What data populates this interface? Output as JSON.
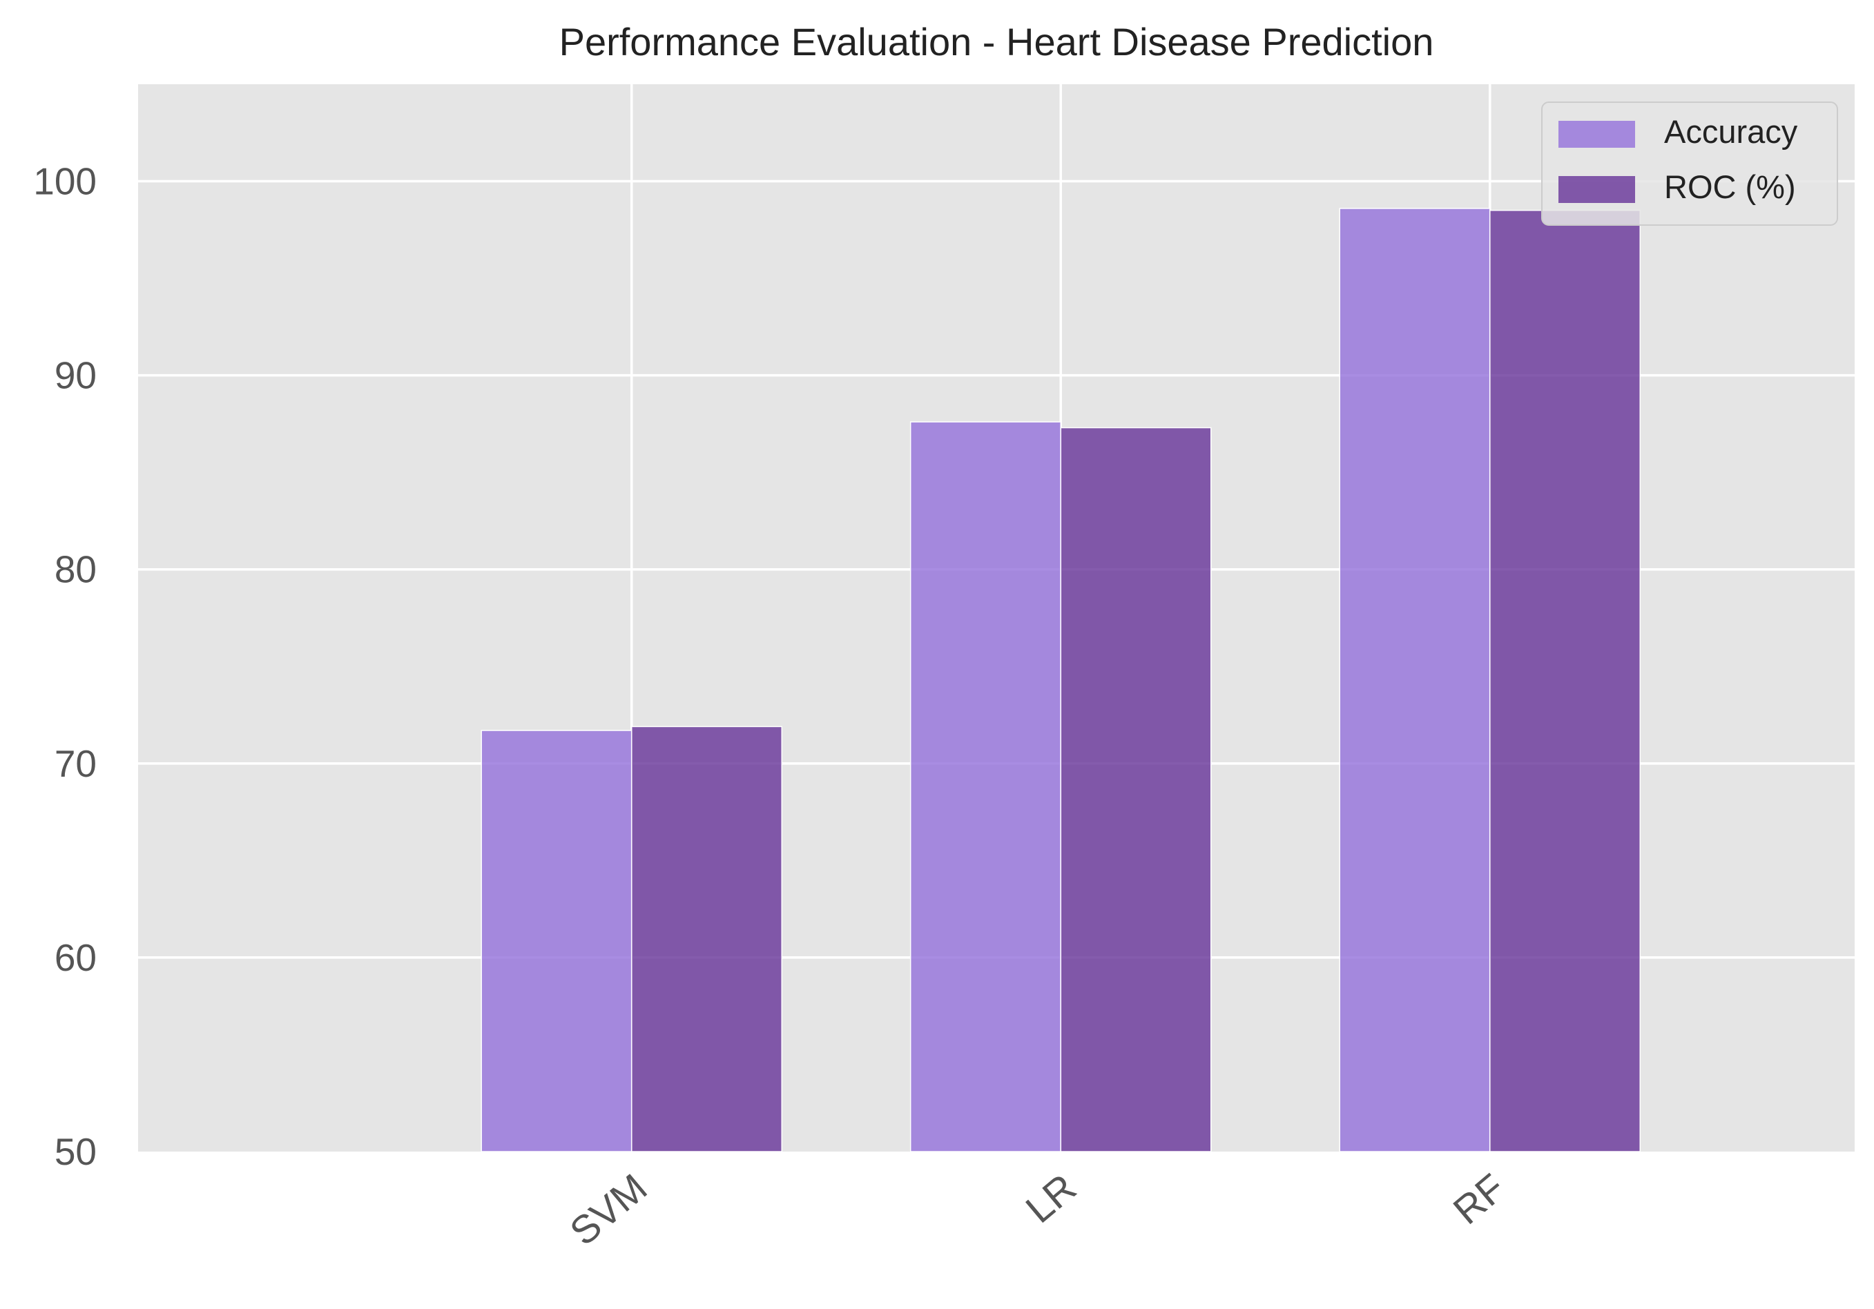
{
  "chart_data": {
    "type": "bar",
    "title": "Performance Evaluation - Heart Disease Prediction",
    "xlabel": "",
    "ylabel": "",
    "categories": [
      "SVM",
      "LR",
      "RF"
    ],
    "x_range": [
      -1.15,
      2.85
    ],
    "ylim": [
      50,
      105
    ],
    "yticks": [
      50,
      60,
      70,
      80,
      90,
      100
    ],
    "grid": true,
    "legend_position": "top-right",
    "bar_width": 0.35,
    "series": [
      {
        "name": "Accuracy",
        "values": [
          71.7,
          87.6,
          98.6
        ],
        "color": "#9370db",
        "alpha": 0.8,
        "offset": -0.175
      },
      {
        "name": "ROC (%)",
        "values": [
          71.9,
          87.3,
          98.5
        ],
        "color": "#663399",
        "alpha": 0.8,
        "offset": 0.175
      }
    ],
    "colors": {
      "plot_background": "#e5e5e5",
      "grid": "#ffffff",
      "tick_label": "#555555",
      "title": "#222222",
      "legend_background": "#e5e5e5",
      "legend_border": "#cccccc"
    }
  }
}
